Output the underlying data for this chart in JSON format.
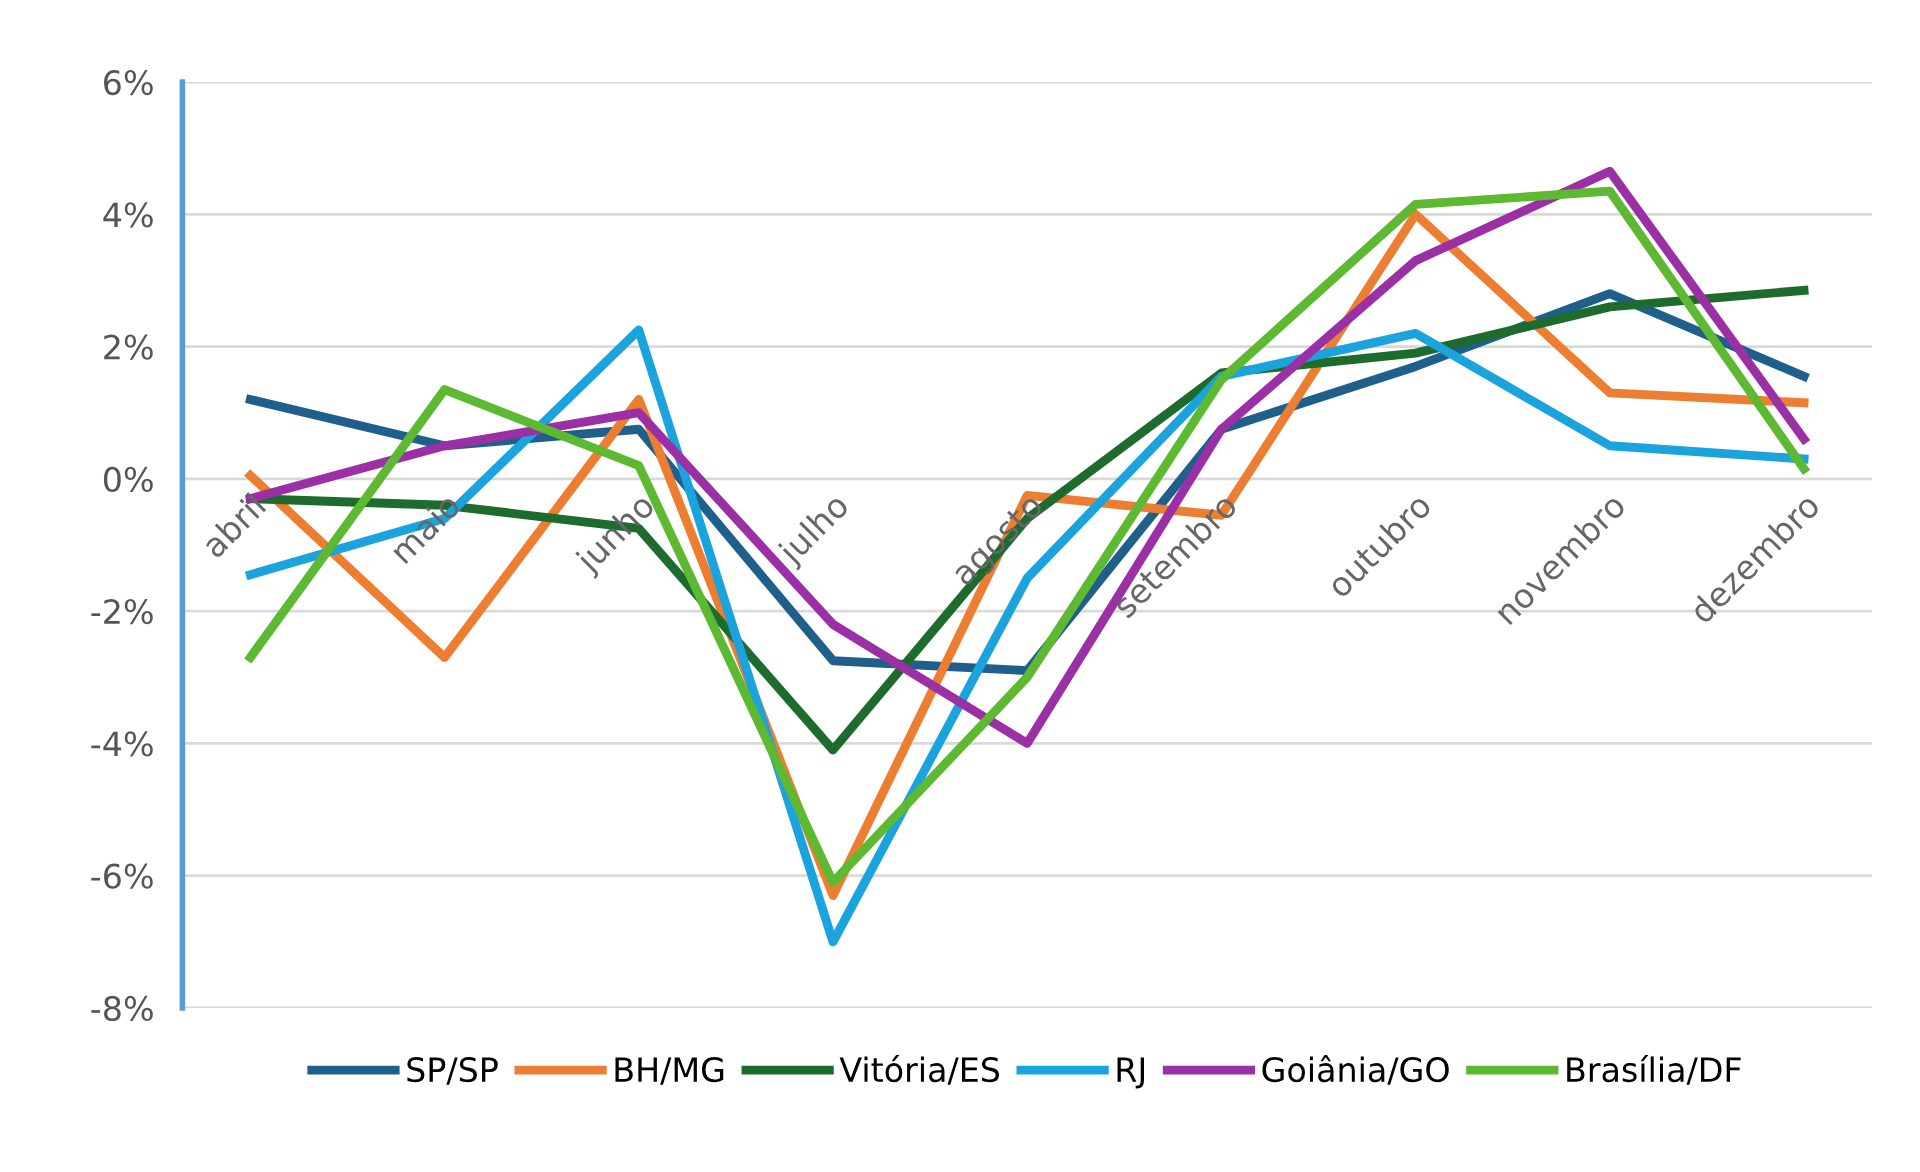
{
  "chart_data": {
    "type": "line",
    "categories": [
      "abril",
      "maio",
      "junho",
      "julho",
      "agosto",
      "setembro",
      "outubro",
      "novembro",
      "dezembro"
    ],
    "series": [
      {
        "name": "SP/SP",
        "color": "#1f5f8b",
        "values": [
          1.2,
          0.5,
          0.75,
          -2.75,
          -2.9,
          0.75,
          1.7,
          2.8,
          1.55
        ]
      },
      {
        "name": "BH/MG",
        "color": "#ed7d31",
        "values": [
          0.05,
          -2.7,
          1.2,
          -6.3,
          -0.25,
          -0.55,
          4.0,
          1.3,
          1.15
        ]
      },
      {
        "name": "Vitória/ES",
        "color": "#1e6b2e",
        "values": [
          -0.3,
          -0.4,
          -0.75,
          -4.1,
          -0.6,
          1.6,
          1.9,
          2.6,
          2.85
        ]
      },
      {
        "name": "RJ",
        "color": "#1aa3dc",
        "values": [
          -1.45,
          -0.6,
          2.25,
          -7.0,
          -1.5,
          1.55,
          2.2,
          0.5,
          0.3
        ]
      },
      {
        "name": "Goiânia/GO",
        "color": "#9b2fa5",
        "values": [
          -0.3,
          0.5,
          1.0,
          -2.2,
          -4.0,
          0.75,
          3.3,
          4.65,
          0.6
        ]
      },
      {
        "name": "Brasília/DF",
        "color": "#5db832",
        "values": [
          -2.7,
          1.35,
          0.2,
          -6.1,
          -3.0,
          1.5,
          4.15,
          4.35,
          0.15
        ]
      }
    ],
    "ylim": [
      -8,
      6
    ],
    "yticks": [
      {
        "value": -8,
        "label": "-8%"
      },
      {
        "value": -6,
        "label": "-6%"
      },
      {
        "value": -4,
        "label": "-4%"
      },
      {
        "value": -2,
        "label": "-2%"
      },
      {
        "value": 0,
        "label": "0%"
      },
      {
        "value": 2,
        "label": "2%"
      },
      {
        "value": 4,
        "label": "4%"
      },
      {
        "value": 6,
        "label": "6%"
      }
    ],
    "grid": "y",
    "legend": "bottom",
    "marker": "none",
    "line_style": "solid"
  }
}
